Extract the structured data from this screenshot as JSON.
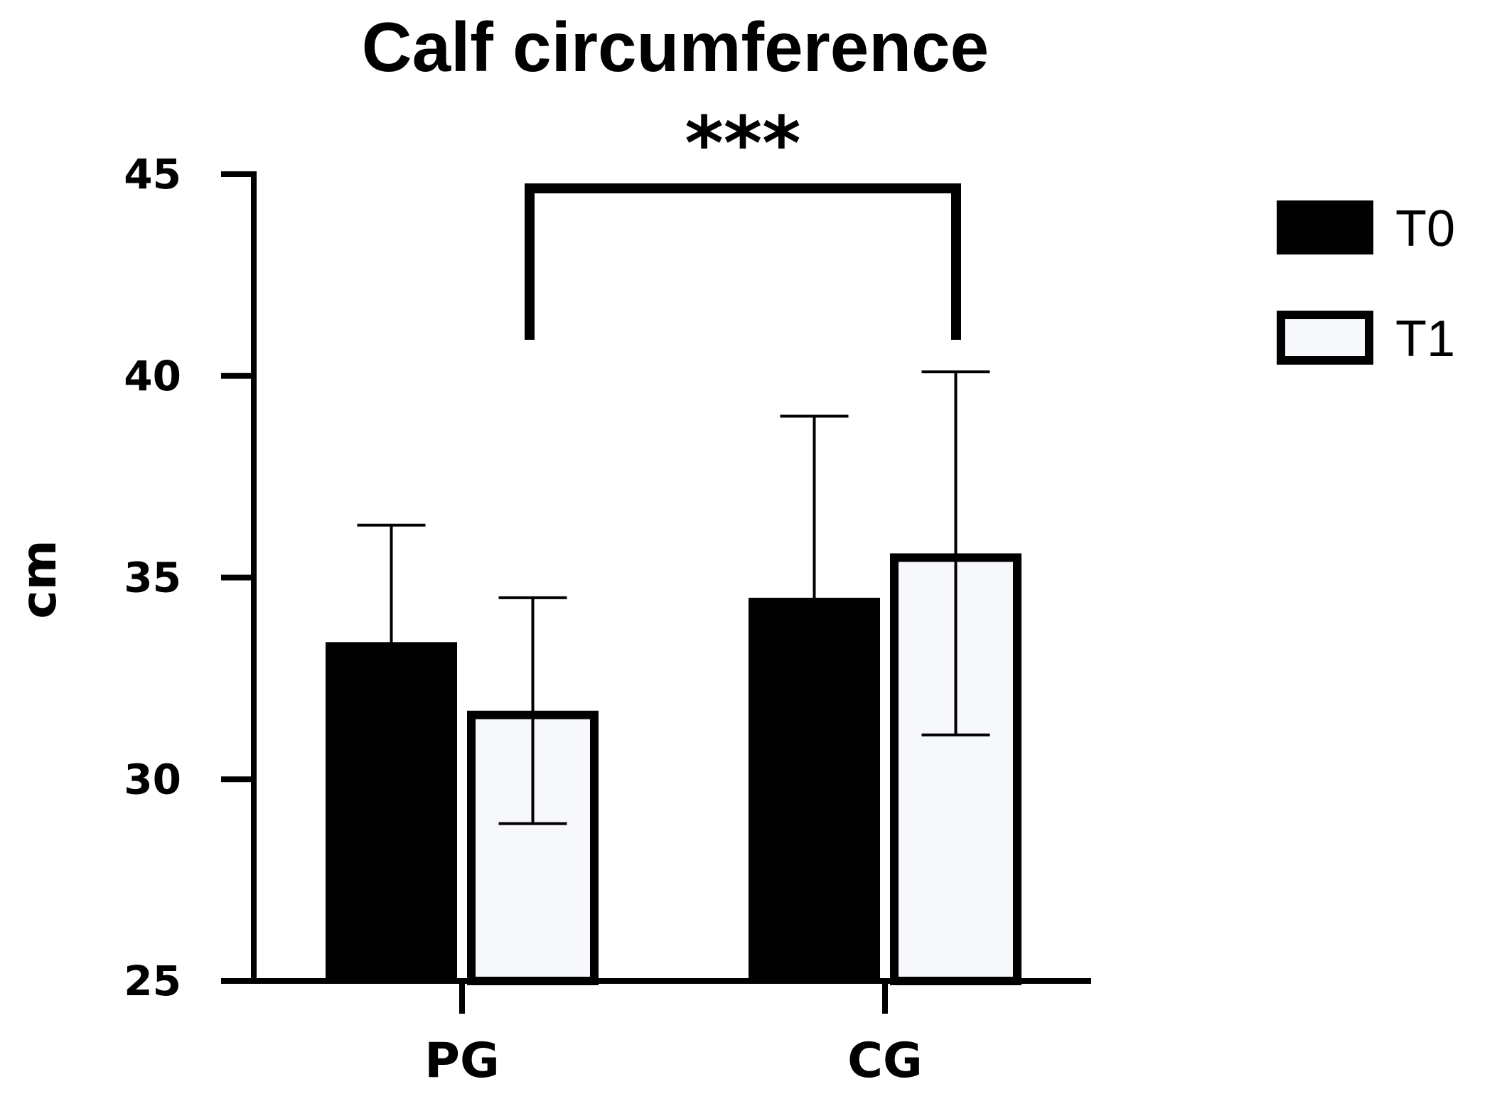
{
  "chart_data": {
    "type": "bar",
    "title": "Calf circumference",
    "xlabel": "",
    "ylabel": "cm",
    "ylim": [
      25,
      45
    ],
    "yticks": [
      25,
      30,
      35,
      40,
      45
    ],
    "categories": [
      "PG",
      "CG"
    ],
    "series": [
      {
        "name": "T0",
        "values": [
          33.4,
          34.5
        ],
        "error": [
          2.9,
          4.5
        ],
        "fill": "#000000"
      },
      {
        "name": "T1",
        "values": [
          31.7,
          35.6
        ],
        "error": [
          2.8,
          4.5
        ],
        "fill": "#f7f8fc"
      }
    ],
    "annotation": {
      "text": "***",
      "between": [
        "PG",
        "CG"
      ]
    },
    "grid": false,
    "legend_position": "top-right"
  }
}
